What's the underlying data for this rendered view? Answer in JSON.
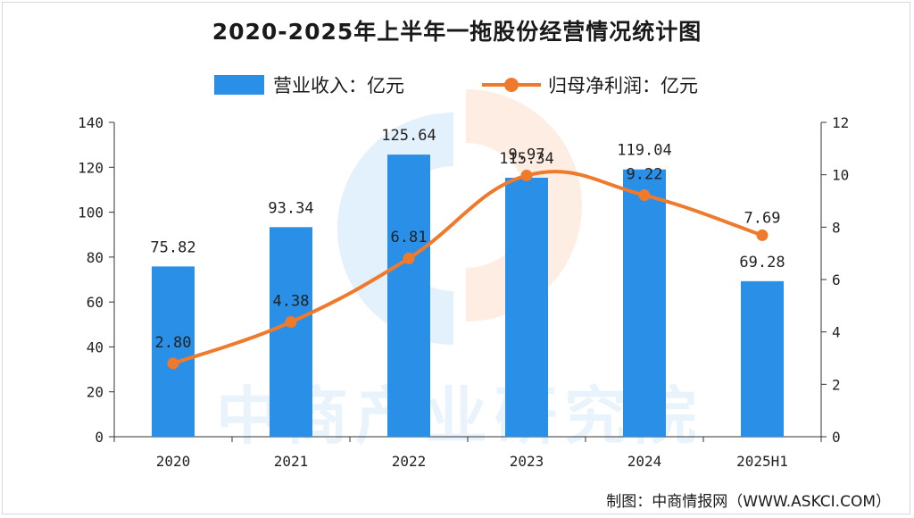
{
  "title": "2020-2025年上半年一拖股份经营情况统计图",
  "legend": {
    "revenue_label": "营业收入：亿元",
    "profit_label": "归母净利润：亿元"
  },
  "source": "制图：中商情报网（WWW.ASKCI.COM）",
  "watermark": "中商产业研究院",
  "colors": {
    "bar": "#2a8fe6",
    "line": "#f07a2c",
    "axis": "#333333"
  },
  "chart_data": {
    "type": "bar",
    "categories": [
      "2020",
      "2021",
      "2022",
      "2023",
      "2024",
      "2025H1"
    ],
    "series": [
      {
        "name": "营业收入：亿元",
        "type": "bar",
        "axis": "left",
        "values": [
          75.82,
          93.34,
          125.64,
          115.34,
          119.04,
          69.28
        ]
      },
      {
        "name": "归母净利润：亿元",
        "type": "line",
        "axis": "right",
        "values": [
          2.8,
          4.38,
          6.81,
          9.97,
          9.22,
          7.69
        ]
      }
    ],
    "y_left": {
      "ylim": [
        0,
        140
      ],
      "ticks": [
        0,
        20,
        40,
        60,
        80,
        100,
        120,
        140
      ]
    },
    "y_right": {
      "ylim": [
        0,
        12
      ],
      "ticks": [
        0,
        2,
        4,
        6,
        8,
        10,
        12
      ]
    },
    "bar_labels": [
      "75.82",
      "93.34",
      "125.64",
      "115.34",
      "119.04",
      "69.28"
    ],
    "line_labels": [
      "2.80",
      "4.38",
      "6.81",
      "9.97",
      "9.22",
      "7.69"
    ],
    "legend_position": "top-center",
    "grid": false
  }
}
